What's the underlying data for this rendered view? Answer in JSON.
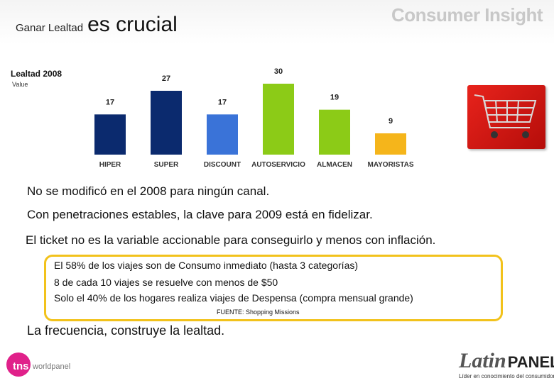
{
  "header": {
    "title_small": "Ganar Lealtad",
    "title_big": "es crucial",
    "brand": "Consumer Insight"
  },
  "chart_data": {
    "type": "bar",
    "title": "Lealtad 2008",
    "ylabel": "Value",
    "categories": [
      "HIPER",
      "SUPER",
      "DISCOUNT",
      "AUTOSERVICIO",
      "ALMACEN",
      "MAYORISTAS"
    ],
    "values": [
      17,
      27,
      17,
      30,
      19,
      9
    ],
    "colors": [
      "#0b2a6e",
      "#0b2a6e",
      "#3a73d8",
      "#8ccb17",
      "#8ccb17",
      "#f5b51b"
    ],
    "ylim": [
      0,
      30
    ]
  },
  "content": {
    "line1": "No se modificó en el 2008 para ningún canal.",
    "line2": "Con penetraciones estables, la clave para 2009 está en fidelizar.",
    "line3": "El ticket no es la variable accionable para conseguirlo y menos con inflación.",
    "box": {
      "item1": "El 58% de los viajes son de Consumo inmediato (hasta 3 categorías)",
      "item2": "8 de cada 10 viajes se resuelve con menos de $50",
      "item3": "Solo el 40% de los hogares realiza viajes de Despensa (compra mensual grande)",
      "source": "FUENTE: Shopping Missions"
    },
    "line4": "La frecuencia, construye la lealtad."
  },
  "footer": {
    "tns_label": "tns",
    "tns_sub": "worldpanel",
    "latin": "Latin",
    "panel": "PANEL",
    "tagline": "Líder en conocimiento del consumidor"
  }
}
